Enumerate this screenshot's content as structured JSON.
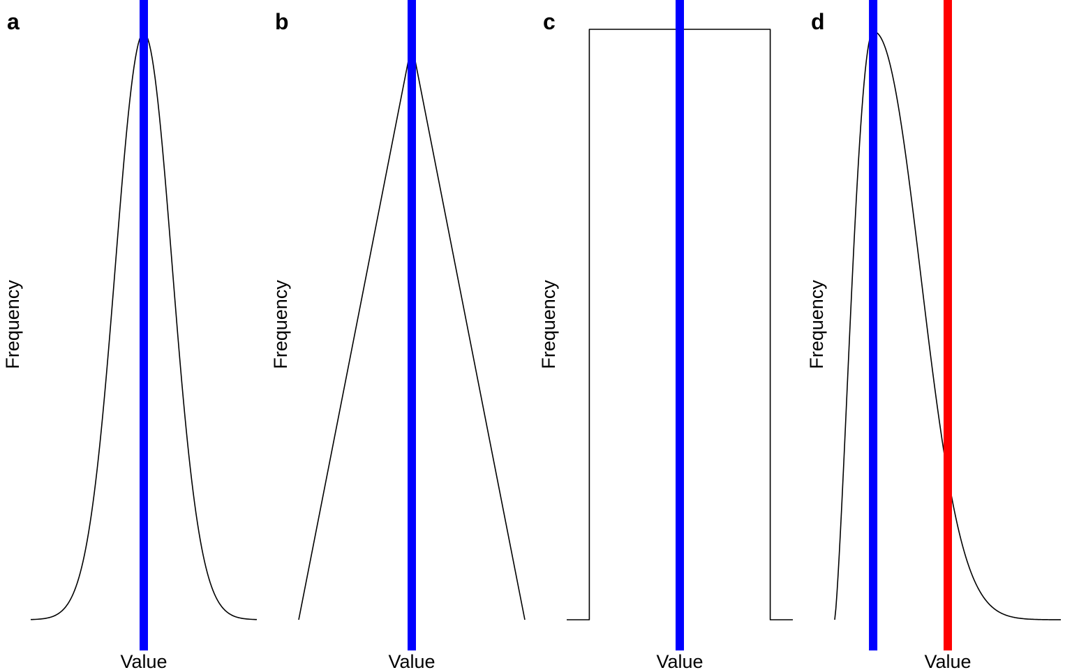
{
  "chart_data": [
    {
      "panel": "a",
      "type": "line",
      "shape": "normal",
      "xlabel": "Value",
      "ylabel": "Frequency",
      "x_range": [
        -4,
        4
      ],
      "y_range": [
        0,
        1
      ],
      "series": [
        {
          "x": [
            -4,
            -3,
            -2,
            -1,
            0,
            1,
            2,
            3,
            4
          ],
          "y": [
            0.0003,
            0.011,
            0.135,
            0.607,
            1,
            0.607,
            0.135,
            0.011,
            0.0003
          ]
        }
      ],
      "vlines": [
        {
          "x": 0,
          "color": "#0000ff"
        }
      ]
    },
    {
      "panel": "b",
      "type": "line",
      "shape": "triangular",
      "xlabel": "Value",
      "ylabel": "Frequency",
      "x_range": [
        -1,
        1
      ],
      "y_range": [
        0,
        1
      ],
      "series": [
        {
          "x": [
            -1,
            0,
            1
          ],
          "y": [
            0,
            1,
            0
          ]
        }
      ],
      "vlines": [
        {
          "x": 0,
          "color": "#0000ff"
        }
      ]
    },
    {
      "panel": "c",
      "type": "line",
      "shape": "uniform",
      "xlabel": "Value",
      "ylabel": "Frequency",
      "x_range": [
        -1,
        1
      ],
      "y_range": [
        0,
        1
      ],
      "series": [
        {
          "x": [
            -1,
            -0.8,
            -0.8,
            0.8,
            0.8,
            1
          ],
          "y": [
            0,
            0,
            1,
            1,
            0,
            0
          ]
        }
      ],
      "vlines": [
        {
          "x": 0,
          "color": "#0000ff"
        }
      ]
    },
    {
      "panel": "d",
      "type": "line",
      "shape": "right-skewed",
      "xlabel": "Value",
      "ylabel": "Frequency",
      "x_range": [
        0,
        10
      ],
      "y_range": [
        0,
        1
      ],
      "series": [
        {
          "x": [
            0,
            1,
            1.7,
            2.5,
            4,
            5,
            6,
            7,
            8,
            10
          ],
          "y": [
            0,
            0.78,
            1,
            0.92,
            0.55,
            0.26,
            0.12,
            0.05,
            0.02,
            0.003
          ]
        }
      ],
      "vlines": [
        {
          "x": 1.7,
          "color": "#0000ff"
        },
        {
          "x": 5.0,
          "color": "#ff0000"
        }
      ]
    }
  ]
}
